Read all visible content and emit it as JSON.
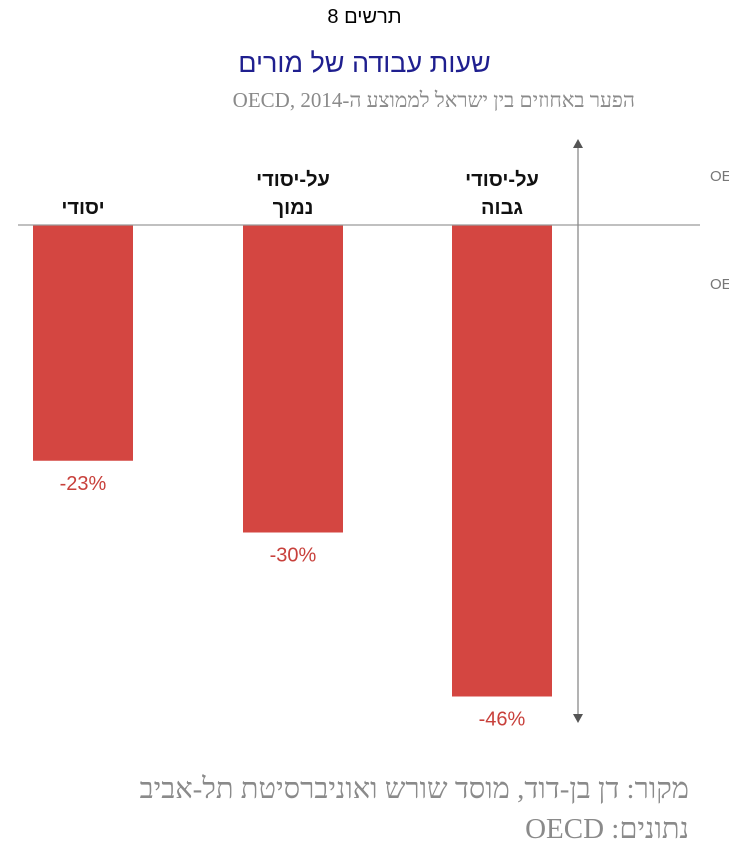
{
  "header": {
    "figure_label": "תרשים 8",
    "title": "שעות עבודה של מורים",
    "subtitle": "הפער באחוזים בין ישראל לממוצע ה-OECD, 2014"
  },
  "footer": {
    "source": "מקור: דן בן-דוד, מוסד שורש ואוניברסיטת תל-אביב",
    "data": "נתונים: OECD"
  },
  "colors": {
    "bar": "#d44641",
    "value_label": "#c8403b",
    "axis": "#9a9a9a",
    "title": "#1f1f8f"
  },
  "chart_data": {
    "type": "bar",
    "categories": [
      [
        "יסודי"
      ],
      [
        "על-יסודי",
        "נמוך"
      ],
      [
        "על-יסודי",
        "גבוה"
      ]
    ],
    "values": [
      -23,
      -30,
      -46
    ],
    "value_labels": [
      "-23%",
      "-30%",
      "-46%"
    ],
    "ylim": [
      -50,
      7
    ],
    "axis_annotations": {
      "above": "יותר מה-OECD",
      "below": "פחות מה-OECD"
    },
    "grid": false
  }
}
